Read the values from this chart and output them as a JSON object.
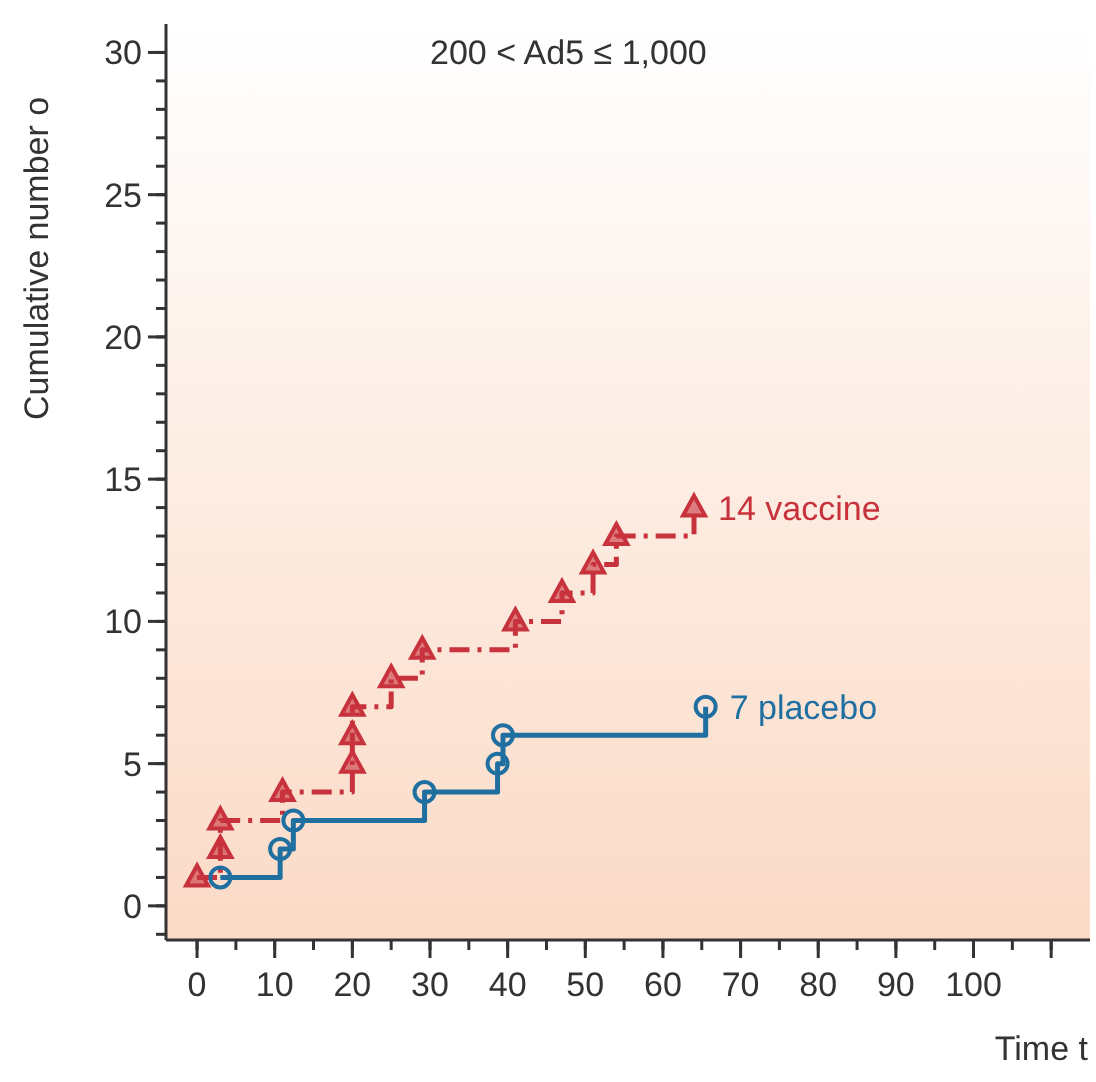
{
  "chart_data": {
    "type": "step",
    "title": "200 < Ad5 ≤ 1,000",
    "xlabel": "Time t",
    "ylabel": "Cumulative number o",
    "xlim": [
      -4,
      115
    ],
    "xticks": [
      0,
      10,
      20,
      30,
      40,
      50,
      60,
      70,
      80,
      90,
      100,
      {
        "value": 110,
        "label": null
      }
    ],
    "ylim": [
      -1.2,
      31
    ],
    "yticks": [
      0,
      5,
      10,
      15,
      20,
      25,
      30
    ],
    "grid": false,
    "series": [
      {
        "name": "14 vaccine",
        "color": "#c8323c",
        "marker": "triangle",
        "line_style": "dashed",
        "x": [
          0,
          3,
          3,
          11,
          20,
          20,
          20,
          25,
          29,
          41,
          47,
          51,
          54,
          64
        ],
        "values": [
          1,
          2,
          3,
          4,
          5,
          6,
          7,
          8,
          9,
          10,
          11,
          12,
          13,
          14
        ]
      },
      {
        "name": "7 placebo",
        "color": "#1f6fa0",
        "marker": "circle",
        "line_style": "solid",
        "x": [
          3,
          10.7,
          12.4,
          29.3,
          38.7,
          39.4,
          65.5
        ],
        "values": [
          1,
          2,
          3,
          4,
          5,
          6,
          7
        ]
      }
    ]
  }
}
